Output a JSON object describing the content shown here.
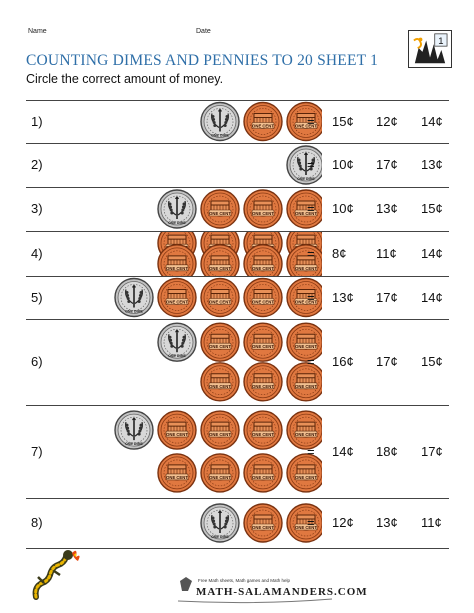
{
  "header": {
    "name_label": "Name",
    "date_label": "Date",
    "logo_badge": "1"
  },
  "title": "COUNTING DIMES AND PENNIES TO 20 SHEET 1",
  "instruction": "Circle the correct amount of money.",
  "equals_sign": "=",
  "coin_text": {
    "penny": "ONE CENT",
    "dime": "ONE DIME"
  },
  "colors": {
    "title": "#2f6fa8",
    "penny": "#e07840",
    "dime": "#b8b8b8"
  },
  "questions": [
    {
      "number": "1)",
      "dimes": 1,
      "pennies": 2,
      "choices": [
        "15¢",
        "12¢",
        "14¢"
      ]
    },
    {
      "number": "2)",
      "dimes": 1,
      "pennies": 0,
      "choices": [
        "10¢",
        "17¢",
        "13¢"
      ]
    },
    {
      "number": "3)",
      "dimes": 1,
      "pennies": 3,
      "choices": [
        "10¢",
        "13¢",
        "15¢"
      ]
    },
    {
      "number": "4)",
      "dimes": 0,
      "pennies": 8,
      "choices": [
        "8¢",
        "11¢",
        "14¢"
      ]
    },
    {
      "number": "5)",
      "dimes": 1,
      "pennies": 4,
      "choices": [
        "13¢",
        "17¢",
        "14¢"
      ]
    },
    {
      "number": "6)",
      "dimes": 1,
      "pennies": 6,
      "choices": [
        "16¢",
        "17¢",
        "15¢"
      ]
    },
    {
      "number": "7)",
      "dimes": 1,
      "pennies": 8,
      "choices": [
        "14¢",
        "18¢",
        "17¢"
      ]
    },
    {
      "number": "8)",
      "dimes": 1,
      "pennies": 2,
      "choices": [
        "12¢",
        "13¢",
        "11¢"
      ]
    }
  ],
  "footer": {
    "tagline": "Free Math sheets, Math games and Math help",
    "brand": "MATH-SALAMANDERS.COM"
  }
}
